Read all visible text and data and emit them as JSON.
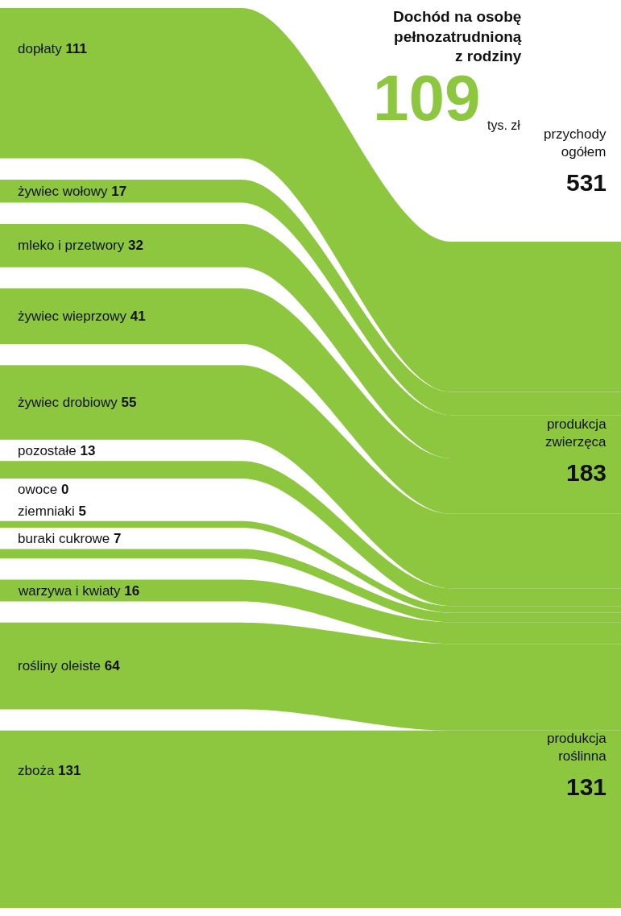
{
  "chart_data": {
    "type": "other",
    "title": "Dochód na osobę pełnozatrudnioną z rodziny",
    "annotations": [
      "109",
      "tys. zł",
      "przychody ogółem",
      "531",
      "produkcja zwierzęca",
      "183",
      "produkcja roślinna",
      "131"
    ],
    "categories": [
      "dopłaty",
      "żywiec wołowy",
      "mleko i przetwory",
      "żywiec wieprzowy",
      "żywiec drobiowy",
      "pozostałe",
      "owoce",
      "ziemniaki",
      "buraki cukrowe",
      "warzywa i kwiaty",
      "rośliny oleiste",
      "zboża"
    ],
    "values": [
      111,
      17,
      32,
      41,
      55,
      13,
      0,
      5,
      7,
      16,
      64,
      131
    ],
    "color": "#8dc63f",
    "data_labels": true
  }
}
